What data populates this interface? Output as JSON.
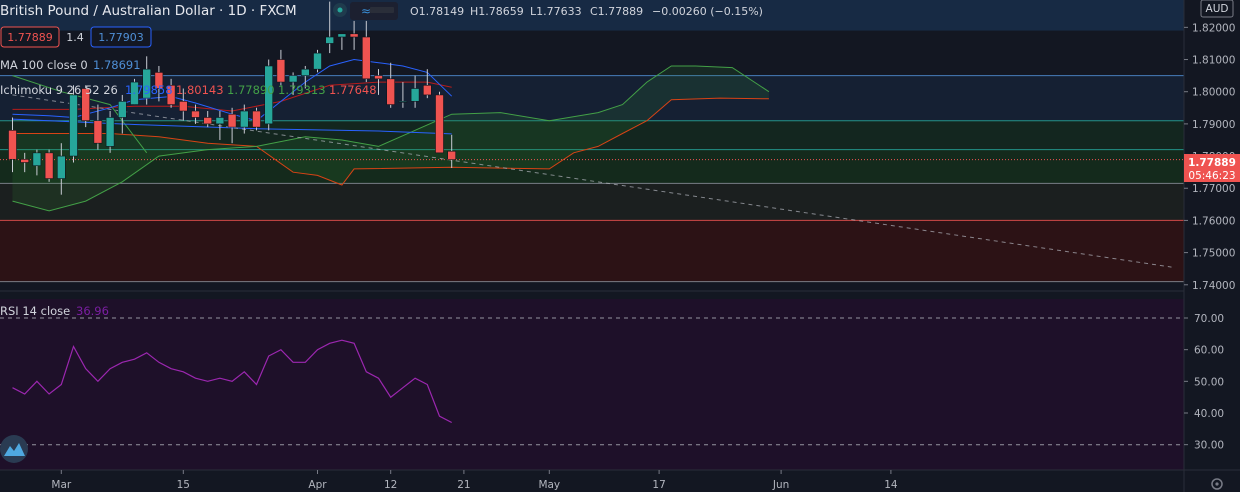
{
  "header": {
    "title": "British Pound / Australian Dollar · 1D · FXCM",
    "ohlc": {
      "open": "O1.78149",
      "high": "H1.78659",
      "low": "L1.77633",
      "close": "C1.77889",
      "change": "−0.00260 (−0.15%)"
    },
    "bid": "1.77889",
    "spread": "1.4",
    "ask": "1.77903",
    "currency": "AUD"
  },
  "indicators": {
    "ma_label": "MA 100 close 0",
    "ma_value": "1.78691",
    "ichimoku_label": "Ichimoku 9 26 52 26",
    "ichimoku_values": [
      "1.79858",
      "1.80143",
      "1.77890",
      "1.79313",
      "1.77648"
    ],
    "rsi_label": "RSI 14 close",
    "rsi_value": "36.96"
  },
  "price_label": {
    "value": "1.77889",
    "countdown": "05:46:23"
  },
  "colors": {
    "background": "#131722",
    "bull": "#26a69a",
    "bear": "#ef5350",
    "tenkan": "#2962ff",
    "kijun": "#b71c1c",
    "span_a": "#43a047",
    "span_b": "#d84315",
    "chikou": "#7e57c2",
    "rsi": "#9c27b0"
  },
  "chart_data": [
    {
      "type": "candlestick",
      "title": "British Pound / Australian Dollar · 1D · FXCM",
      "x_tick_labels": [
        "Mar",
        "15",
        "Apr",
        "12",
        "21",
        "May",
        "17",
        "Jun",
        "14"
      ],
      "x_tick_indices": [
        4,
        14,
        25,
        31,
        37,
        44,
        53,
        63,
        72
      ],
      "y_ticks": [
        "1.82000",
        "1.81000",
        "1.80000",
        "1.79000",
        "1.78000",
        "1.77000",
        "1.76000",
        "1.75000",
        "1.74000"
      ],
      "y_tick_values": [
        1.82,
        1.81,
        1.8,
        1.79,
        1.78,
        1.77,
        1.76,
        1.75,
        1.74
      ],
      "ylim": [
        1.739,
        1.8285
      ],
      "candles": [
        {
          "o": 1.788,
          "h": 1.792,
          "l": 1.775,
          "c": 1.779
        },
        {
          "o": 1.779,
          "h": 1.781,
          "l": 1.775,
          "c": 1.778
        },
        {
          "o": 1.777,
          "h": 1.782,
          "l": 1.774,
          "c": 1.781
        },
        {
          "o": 1.781,
          "h": 1.782,
          "l": 1.772,
          "c": 1.773
        },
        {
          "o": 1.773,
          "h": 1.784,
          "l": 1.768,
          "c": 1.78
        },
        {
          "o": 1.78,
          "h": 1.802,
          "l": 1.778,
          "c": 1.799
        },
        {
          "o": 1.801,
          "h": 1.802,
          "l": 1.789,
          "c": 1.791
        },
        {
          "o": 1.791,
          "h": 1.796,
          "l": 1.782,
          "c": 1.784
        },
        {
          "o": 1.783,
          "h": 1.794,
          "l": 1.781,
          "c": 1.792
        },
        {
          "o": 1.792,
          "h": 1.799,
          "l": 1.787,
          "c": 1.797
        },
        {
          "o": 1.796,
          "h": 1.804,
          "l": 1.796,
          "c": 1.803
        },
        {
          "o": 1.798,
          "h": 1.811,
          "l": 1.796,
          "c": 1.807
        },
        {
          "o": 1.806,
          "h": 1.808,
          "l": 1.797,
          "c": 1.801
        },
        {
          "o": 1.802,
          "h": 1.804,
          "l": 1.795,
          "c": 1.796
        },
        {
          "o": 1.797,
          "h": 1.801,
          "l": 1.791,
          "c": 1.794
        },
        {
          "o": 1.794,
          "h": 1.796,
          "l": 1.79,
          "c": 1.792
        },
        {
          "o": 1.792,
          "h": 1.794,
          "l": 1.789,
          "c": 1.79
        },
        {
          "o": 1.79,
          "h": 1.794,
          "l": 1.785,
          "c": 1.792
        },
        {
          "o": 1.793,
          "h": 1.795,
          "l": 1.784,
          "c": 1.789
        },
        {
          "o": 1.789,
          "h": 1.796,
          "l": 1.787,
          "c": 1.794
        },
        {
          "o": 1.794,
          "h": 1.795,
          "l": 1.788,
          "c": 1.789
        },
        {
          "o": 1.79,
          "h": 1.81,
          "l": 1.788,
          "c": 1.808
        },
        {
          "o": 1.81,
          "h": 1.813,
          "l": 1.802,
          "c": 1.803
        },
        {
          "o": 1.803,
          "h": 1.806,
          "l": 1.799,
          "c": 1.805
        },
        {
          "o": 1.805,
          "h": 1.808,
          "l": 1.801,
          "c": 1.807
        },
        {
          "o": 1.807,
          "h": 1.813,
          "l": 1.806,
          "c": 1.812
        },
        {
          "o": 1.815,
          "h": 1.828,
          "l": 1.812,
          "c": 1.817
        },
        {
          "o": 1.817,
          "h": 1.818,
          "l": 1.813,
          "c": 1.818
        },
        {
          "o": 1.818,
          "h": 1.822,
          "l": 1.813,
          "c": 1.817
        },
        {
          "o": 1.817,
          "h": 1.822,
          "l": 1.803,
          "c": 1.804
        },
        {
          "o": 1.805,
          "h": 1.807,
          "l": 1.799,
          "c": 1.804
        },
        {
          "o": 1.804,
          "h": 1.809,
          "l": 1.795,
          "c": 1.796
        },
        {
          "o": 1.797,
          "h": 1.803,
          "l": 1.795,
          "c": 1.797
        },
        {
          "o": 1.797,
          "h": 1.805,
          "l": 1.795,
          "c": 1.801
        },
        {
          "o": 1.802,
          "h": 1.807,
          "l": 1.798,
          "c": 1.799
        },
        {
          "o": 1.799,
          "h": 1.8,
          "l": 1.781,
          "c": 1.781
        },
        {
          "o": 1.7815,
          "h": 1.7866,
          "l": 1.7763,
          "c": 1.7789
        }
      ],
      "ma100": [
        {
          "x": 0,
          "y": 1.7915
        },
        {
          "x": 10,
          "y": 1.7898
        },
        {
          "x": 20,
          "y": 1.7885
        },
        {
          "x": 30,
          "y": 1.7878
        },
        {
          "x": 36,
          "y": 1.7869
        }
      ],
      "tenkan": [
        {
          "x": 0,
          "y": 1.793
        },
        {
          "x": 3,
          "y": 1.7925
        },
        {
          "x": 5,
          "y": 1.792
        },
        {
          "x": 8,
          "y": 1.795
        },
        {
          "x": 10,
          "y": 1.7975
        },
        {
          "x": 13,
          "y": 1.7985
        },
        {
          "x": 15,
          "y": 1.7965
        },
        {
          "x": 18,
          "y": 1.793
        },
        {
          "x": 20,
          "y": 1.791
        },
        {
          "x": 22,
          "y": 1.797
        },
        {
          "x": 24,
          "y": 1.803
        },
        {
          "x": 26,
          "y": 1.808
        },
        {
          "x": 28,
          "y": 1.81
        },
        {
          "x": 30,
          "y": 1.809
        },
        {
          "x": 32,
          "y": 1.808
        },
        {
          "x": 34,
          "y": 1.806
        },
        {
          "x": 36,
          "y": 1.7986
        }
      ],
      "kijun": [
        {
          "x": 0,
          "y": 1.7945
        },
        {
          "x": 5,
          "y": 1.7945
        },
        {
          "x": 10,
          "y": 1.7955
        },
        {
          "x": 14,
          "y": 1.7955
        },
        {
          "x": 18,
          "y": 1.794
        },
        {
          "x": 22,
          "y": 1.797
        },
        {
          "x": 26,
          "y": 1.802
        },
        {
          "x": 30,
          "y": 1.803
        },
        {
          "x": 34,
          "y": 1.803
        },
        {
          "x": 36,
          "y": 1.8014
        }
      ],
      "span_a": [
        {
          "x": 0,
          "y": 1.766
        },
        {
          "x": 3,
          "y": 1.763
        },
        {
          "x": 6,
          "y": 1.766
        },
        {
          "x": 9,
          "y": 1.772
        },
        {
          "x": 12,
          "y": 1.78
        },
        {
          "x": 16,
          "y": 1.782
        },
        {
          "x": 20,
          "y": 1.783
        },
        {
          "x": 24,
          "y": 1.786
        },
        {
          "x": 27,
          "y": 1.785
        },
        {
          "x": 30,
          "y": 1.783
        },
        {
          "x": 33,
          "y": 1.788
        },
        {
          "x": 36,
          "y": 1.793
        },
        {
          "x": 40,
          "y": 1.7935
        },
        {
          "x": 44,
          "y": 1.791
        },
        {
          "x": 48,
          "y": 1.7935
        },
        {
          "x": 50,
          "y": 1.796
        },
        {
          "x": 52,
          "y": 1.803
        },
        {
          "x": 54,
          "y": 1.808
        },
        {
          "x": 56,
          "y": 1.808
        },
        {
          "x": 59,
          "y": 1.8075
        },
        {
          "x": 62,
          "y": 1.8
        }
      ],
      "span_b": [
        {
          "x": 0,
          "y": 1.787
        },
        {
          "x": 8,
          "y": 1.787
        },
        {
          "x": 12,
          "y": 1.786
        },
        {
          "x": 16,
          "y": 1.784
        },
        {
          "x": 20,
          "y": 1.783
        },
        {
          "x": 23,
          "y": 1.775
        },
        {
          "x": 25,
          "y": 1.774
        },
        {
          "x": 27,
          "y": 1.771
        },
        {
          "x": 28,
          "y": 1.776
        },
        {
          "x": 36,
          "y": 1.7765
        },
        {
          "x": 44,
          "y": 1.776
        },
        {
          "x": 46,
          "y": 1.781
        },
        {
          "x": 48,
          "y": 1.783
        },
        {
          "x": 50,
          "y": 1.787
        },
        {
          "x": 52,
          "y": 1.791
        },
        {
          "x": 54,
          "y": 1.7975
        },
        {
          "x": 58,
          "y": 1.798
        },
        {
          "x": 62,
          "y": 1.7978
        }
      ],
      "chikou": [
        {
          "x": 0,
          "y": 1.805
        },
        {
          "x": 4,
          "y": 1.8
        },
        {
          "x": 8,
          "y": 1.796
        },
        {
          "x": 11,
          "y": 1.781
        }
      ],
      "trendline": [
        {
          "x": 0,
          "y": 1.799
        },
        {
          "x": 95,
          "y": 1.7455
        }
      ],
      "horizontal_levels": [
        {
          "y": 1.805,
          "color": "#4f8fd6"
        },
        {
          "y": 1.791,
          "color": "#26a69a"
        },
        {
          "y": 1.782,
          "color": "#26a69a"
        },
        {
          "y": 1.7715,
          "color": "#8a8f99"
        },
        {
          "y": 1.76,
          "color": "#ef5350"
        },
        {
          "y": 1.741,
          "color": "#8a8f99"
        }
      ],
      "zones": [
        {
          "from": 1.819,
          "to": 1.8285,
          "color": "#172a44"
        },
        {
          "from": 1.805,
          "to": 1.791,
          "color": "#152033"
        },
        {
          "from": 1.791,
          "to": 1.782,
          "color": "#13261f"
        },
        {
          "from": 1.782,
          "to": 1.7715,
          "color": "#142a1c"
        },
        {
          "from": 1.7715,
          "to": 1.76,
          "color": "#1b1f1f"
        },
        {
          "from": 1.76,
          "to": 1.741,
          "color": "#2c1215"
        }
      ]
    },
    {
      "type": "line",
      "title": "RSI 14 close",
      "y_ticks": [
        "70.00",
        "60.00",
        "50.00",
        "40.00",
        "30.00"
      ],
      "y_tick_values": [
        70,
        60,
        50,
        40,
        30
      ],
      "ylim": [
        22,
        76
      ],
      "levels": [
        70,
        30
      ],
      "series": [
        {
          "name": "RSI 14 close",
          "values": [
            {
              "x": 0,
              "y": 48
            },
            {
              "x": 1,
              "y": 46
            },
            {
              "x": 2,
              "y": 50
            },
            {
              "x": 3,
              "y": 46
            },
            {
              "x": 4,
              "y": 49
            },
            {
              "x": 5,
              "y": 61
            },
            {
              "x": 6,
              "y": 54
            },
            {
              "x": 7,
              "y": 50
            },
            {
              "x": 8,
              "y": 54
            },
            {
              "x": 9,
              "y": 56
            },
            {
              "x": 10,
              "y": 57
            },
            {
              "x": 11,
              "y": 59
            },
            {
              "x": 12,
              "y": 56
            },
            {
              "x": 13,
              "y": 54
            },
            {
              "x": 14,
              "y": 53
            },
            {
              "x": 15,
              "y": 51
            },
            {
              "x": 16,
              "y": 50
            },
            {
              "x": 17,
              "y": 51
            },
            {
              "x": 18,
              "y": 50
            },
            {
              "x": 19,
              "y": 53
            },
            {
              "x": 20,
              "y": 49
            },
            {
              "x": 21,
              "y": 58
            },
            {
              "x": 22,
              "y": 60
            },
            {
              "x": 23,
              "y": 56
            },
            {
              "x": 24,
              "y": 56
            },
            {
              "x": 25,
              "y": 60
            },
            {
              "x": 26,
              "y": 62
            },
            {
              "x": 27,
              "y": 63
            },
            {
              "x": 28,
              "y": 62
            },
            {
              "x": 29,
              "y": 53
            },
            {
              "x": 30,
              "y": 51
            },
            {
              "x": 31,
              "y": 45
            },
            {
              "x": 32,
              "y": 48
            },
            {
              "x": 33,
              "y": 51
            },
            {
              "x": 34,
              "y": 49
            },
            {
              "x": 35,
              "y": 39
            },
            {
              "x": 36,
              "y": 37
            }
          ]
        }
      ]
    }
  ]
}
